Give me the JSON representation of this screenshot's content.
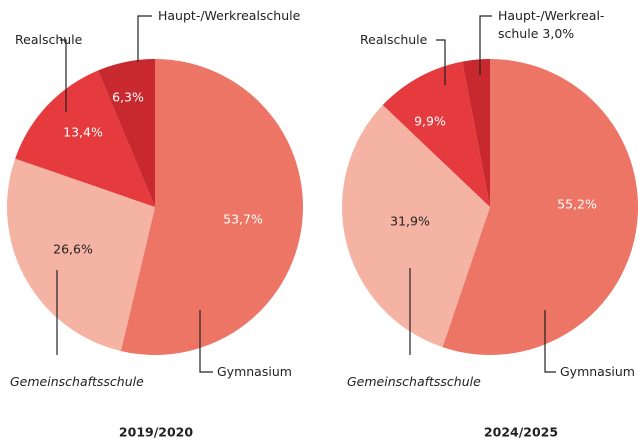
{
  "chart_data": [
    {
      "type": "pie",
      "title": "2019/2020",
      "categories": [
        "Gymnasium",
        "Gemeinschaftsschule",
        "Realschule",
        "Haupt-/Werkrealschule"
      ],
      "values": [
        53.7,
        26.6,
        13.4,
        6.3
      ],
      "value_labels": [
        "53,7%",
        "26,6%",
        "13,4%",
        "6,3%"
      ],
      "colors": [
        "#ec7565",
        "#f5b3a4",
        "#e63b3e",
        "#c8292f"
      ]
    },
    {
      "type": "pie",
      "title": "2024/2025",
      "categories": [
        "Gymnasium",
        "Gemeinschaftsschule",
        "Realschule",
        "Haupt-/Werkreal-schule"
      ],
      "values": [
        55.2,
        31.9,
        9.9,
        3.0
      ],
      "value_labels": [
        "55,2%",
        "31,9%",
        "9,9%",
        "3,0%"
      ],
      "colors": [
        "#ec7565",
        "#f5b3a4",
        "#e63b3e",
        "#c8292f"
      ]
    }
  ]
}
